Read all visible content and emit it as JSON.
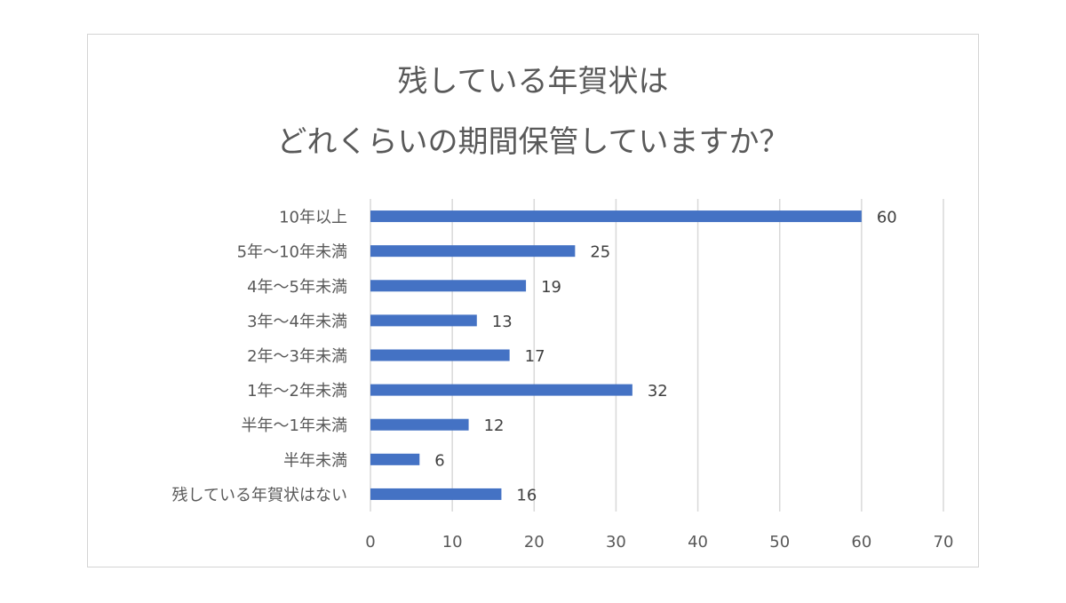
{
  "chart_data": {
    "type": "bar",
    "orientation": "horizontal",
    "title_lines": [
      "残している年賀状は",
      "どれくらいの期間保管していますか？"
    ],
    "categories": [
      "10年以上",
      "5年～10年未満",
      "4年～5年未満",
      "3年～4年未満",
      "2年～3年未満",
      "1年～2年未満",
      "半年～1年未満",
      "半年未満",
      "残している年賀状はない"
    ],
    "values": [
      60,
      25,
      19,
      13,
      17,
      32,
      12,
      6,
      16
    ],
    "xlim": [
      0,
      70
    ],
    "xticks": [
      0,
      10,
      20,
      30,
      40,
      50,
      60,
      70
    ],
    "data_labels": true,
    "grid": "vertical",
    "legend": "none",
    "bar_color": "#4472c4"
  }
}
